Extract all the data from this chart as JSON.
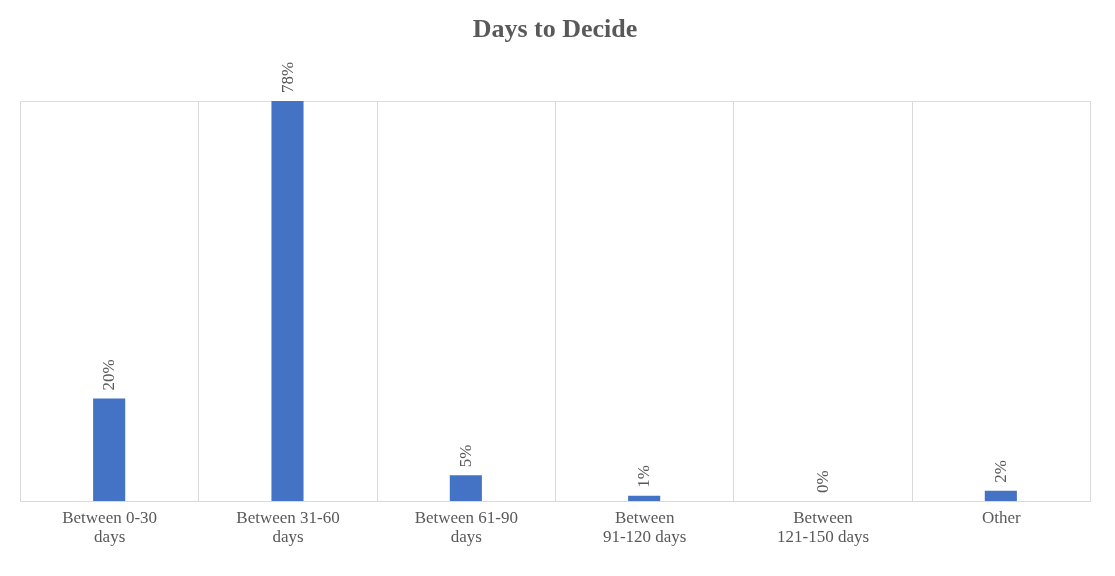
{
  "chart_data": {
    "type": "bar",
    "title": "Days to Decide",
    "categories": [
      "Between 0-30 days",
      "Between 31-60 days",
      "Between 61-90 days",
      "Between 91-120 days",
      "Between 121-150 days",
      "Other"
    ],
    "values": [
      20,
      78,
      5,
      1,
      0,
      2
    ],
    "value_labels": [
      "20%",
      "78%",
      "5%",
      "1%",
      "0%",
      "2%"
    ],
    "color": "#4472c4",
    "grid": "x"
  }
}
